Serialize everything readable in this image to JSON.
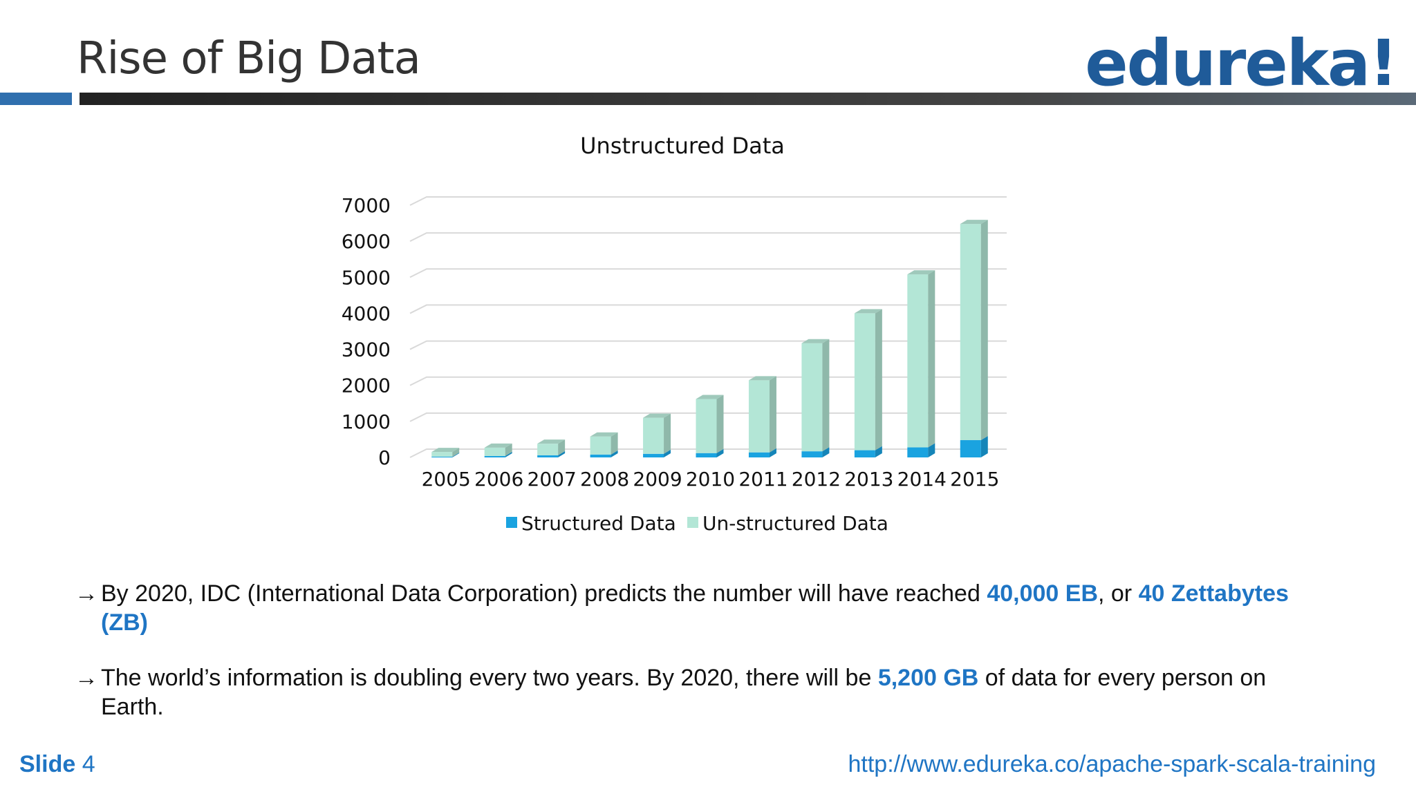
{
  "slide": {
    "title": "Rise of Big Data",
    "logo_text": "edureka!",
    "footer_label": "Slide",
    "footer_number": "4",
    "footer_url": "http://www.edureka.co/apache-spark-scala-training"
  },
  "bullets": [
    {
      "arrow": "→",
      "line1_pre": " By 2020, IDC (International Data Corporation) predicts the number will have reached  ",
      "hl1": "40,000 EB",
      "mid": ", or ",
      "hl2": "40 Zettabytes",
      "line2_hl": "(ZB)"
    },
    {
      "arrow": "→",
      "line1_pre": "The world’s information is doubling every two years.  By 2020, there will be ",
      "hl1": "5,200 GB",
      "line1_post": " of data for every person on",
      "line2": "Earth."
    }
  ],
  "colors": {
    "accent_blue": "#1f75c4",
    "structured": "#1aa3e0",
    "unstructured": "#b3e6d6",
    "unstructured_side": "#8fb8aa",
    "logo": "#1f5b99"
  },
  "chart_data": {
    "type": "bar",
    "stacked": true,
    "title": "Unstructured Data",
    "categories": [
      "2005",
      "2006",
      "2007",
      "2008",
      "2009",
      "2010",
      "2011",
      "2012",
      "2013",
      "2014",
      "2015"
    ],
    "series": [
      {
        "name": "Structured Data",
        "values": [
          20,
          40,
          60,
          80,
          100,
          120,
          140,
          170,
          200,
          280,
          480
        ]
      },
      {
        "name": "Un-structured Data",
        "values": [
          130,
          230,
          320,
          500,
          1000,
          1500,
          2000,
          3000,
          3800,
          4800,
          6000
        ]
      }
    ],
    "yticks": [
      0,
      1000,
      2000,
      3000,
      4000,
      5000,
      6000,
      7000
    ],
    "ylim": [
      0,
      7000
    ],
    "grid": true,
    "legend_position": "bottom"
  }
}
